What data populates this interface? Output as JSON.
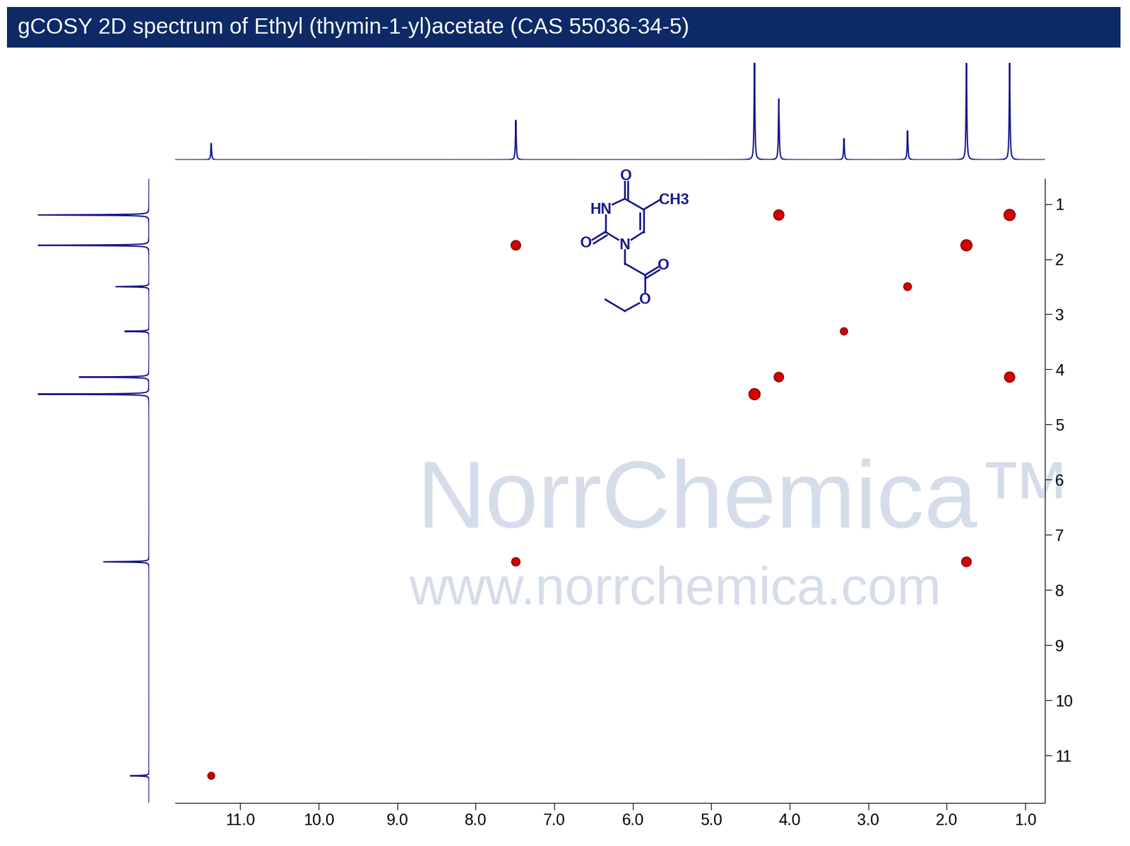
{
  "chart_data": {
    "type": "cosy",
    "title": "gCOSY 2D spectrum of Ethyl (thymin-1-yl)acetate (CAS 55036-34-5)",
    "xlim": [
      11.83,
      0.75
    ],
    "ylim": [
      11.86,
      0.54
    ],
    "xticks": [
      {
        "value": 11,
        "label": "11.0"
      },
      {
        "value": 10,
        "label": "10.0"
      },
      {
        "value": 9,
        "label": "9.0"
      },
      {
        "value": 8,
        "label": "8.0"
      },
      {
        "value": 7,
        "label": "7.0"
      },
      {
        "value": 6,
        "label": "6.0"
      },
      {
        "value": 5,
        "label": "5.0"
      },
      {
        "value": 4,
        "label": "4.0"
      },
      {
        "value": 3,
        "label": "3.0"
      },
      {
        "value": 2,
        "label": "2.0"
      },
      {
        "value": 1,
        "label": "1.0"
      }
    ],
    "yticks": [
      1,
      2,
      3,
      4,
      5,
      6,
      7,
      8,
      9,
      10,
      11
    ],
    "peaks": {
      "shift": [
        11.37,
        7.49,
        4.45,
        4.14,
        3.31,
        2.5,
        1.75,
        1.2
      ],
      "intensity": [
        0.17,
        0.41,
        1.0,
        0.63,
        0.22,
        0.3,
        1.0,
        1.0
      ]
    },
    "cross_peaks": {
      "x": [
        11.37,
        7.49,
        4.45,
        4.14,
        3.31,
        2.5,
        1.75,
        1.2,
        4.14,
        1.2,
        7.49,
        1.75
      ],
      "y": [
        11.37,
        7.49,
        4.45,
        4.14,
        3.31,
        2.5,
        1.75,
        1.2,
        1.2,
        4.14,
        1.75,
        7.49
      ]
    },
    "color": "#d40000",
    "annotations": [
      "NorrChemica™",
      "www.norrchemica.com"
    ],
    "structure_labels": [
      "O",
      "CH3",
      "HN",
      "O",
      "N",
      "O",
      "O"
    ]
  }
}
